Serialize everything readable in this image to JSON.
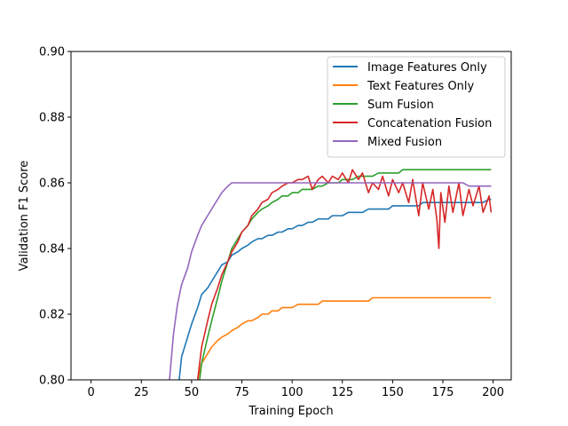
{
  "chart_data": {
    "type": "line",
    "title": "",
    "xlabel": "Training Epoch",
    "ylabel": "Validation F1 Score",
    "xlim": [
      -10,
      209
    ],
    "ylim": [
      0.8,
      0.9
    ],
    "xticks": [
      0,
      25,
      50,
      75,
      100,
      125,
      150,
      175,
      200
    ],
    "yticks": [
      0.8,
      0.82,
      0.84,
      0.86,
      0.88,
      0.9
    ],
    "ytick_labels": [
      "0.80",
      "0.82",
      "0.84",
      "0.86",
      "0.88",
      "0.90"
    ],
    "grid": false,
    "legend_position": "top-right",
    "series": [
      {
        "name": "Image Features Only",
        "color": "#1f77b4",
        "points": [
          [
            40,
            0.78
          ],
          [
            43,
            0.795
          ],
          [
            45,
            0.807
          ],
          [
            48,
            0.813
          ],
          [
            50,
            0.817
          ],
          [
            53,
            0.822
          ],
          [
            55,
            0.826
          ],
          [
            58,
            0.828
          ],
          [
            60,
            0.83
          ],
          [
            63,
            0.833
          ],
          [
            65,
            0.835
          ],
          [
            68,
            0.836
          ],
          [
            70,
            0.838
          ],
          [
            73,
            0.839
          ],
          [
            75,
            0.84
          ],
          [
            78,
            0.841
          ],
          [
            80,
            0.842
          ],
          [
            83,
            0.843
          ],
          [
            85,
            0.843
          ],
          [
            88,
            0.844
          ],
          [
            90,
            0.844
          ],
          [
            93,
            0.845
          ],
          [
            95,
            0.845
          ],
          [
            98,
            0.846
          ],
          [
            100,
            0.846
          ],
          [
            103,
            0.847
          ],
          [
            105,
            0.847
          ],
          [
            108,
            0.848
          ],
          [
            110,
            0.848
          ],
          [
            113,
            0.849
          ],
          [
            115,
            0.849
          ],
          [
            118,
            0.849
          ],
          [
            120,
            0.85
          ],
          [
            123,
            0.85
          ],
          [
            125,
            0.85
          ],
          [
            128,
            0.851
          ],
          [
            130,
            0.851
          ],
          [
            133,
            0.851
          ],
          [
            135,
            0.851
          ],
          [
            138,
            0.852
          ],
          [
            140,
            0.852
          ],
          [
            143,
            0.852
          ],
          [
            145,
            0.852
          ],
          [
            148,
            0.852
          ],
          [
            150,
            0.853
          ],
          [
            153,
            0.853
          ],
          [
            155,
            0.853
          ],
          [
            158,
            0.853
          ],
          [
            160,
            0.853
          ],
          [
            163,
            0.853
          ],
          [
            165,
            0.854
          ],
          [
            168,
            0.854
          ],
          [
            170,
            0.854
          ],
          [
            173,
            0.854
          ],
          [
            175,
            0.854
          ],
          [
            178,
            0.854
          ],
          [
            180,
            0.854
          ],
          [
            183,
            0.854
          ],
          [
            185,
            0.854
          ],
          [
            188,
            0.854
          ],
          [
            190,
            0.854
          ],
          [
            193,
            0.854
          ],
          [
            195,
            0.854
          ],
          [
            198,
            0.855
          ],
          [
            199,
            0.855
          ]
        ]
      },
      {
        "name": "Text Features Only",
        "color": "#ff7f0e",
        "points": [
          [
            51,
            0.79
          ],
          [
            53,
            0.8
          ],
          [
            55,
            0.805
          ],
          [
            58,
            0.808
          ],
          [
            60,
            0.81
          ],
          [
            63,
            0.812
          ],
          [
            65,
            0.813
          ],
          [
            68,
            0.814
          ],
          [
            70,
            0.815
          ],
          [
            73,
            0.816
          ],
          [
            75,
            0.817
          ],
          [
            78,
            0.818
          ],
          [
            80,
            0.818
          ],
          [
            83,
            0.819
          ],
          [
            85,
            0.82
          ],
          [
            88,
            0.82
          ],
          [
            90,
            0.821
          ],
          [
            93,
            0.821
          ],
          [
            95,
            0.822
          ],
          [
            98,
            0.822
          ],
          [
            100,
            0.822
          ],
          [
            103,
            0.823
          ],
          [
            105,
            0.823
          ],
          [
            108,
            0.823
          ],
          [
            110,
            0.823
          ],
          [
            113,
            0.823
          ],
          [
            115,
            0.824
          ],
          [
            118,
            0.824
          ],
          [
            120,
            0.824
          ],
          [
            123,
            0.824
          ],
          [
            125,
            0.824
          ],
          [
            128,
            0.824
          ],
          [
            130,
            0.824
          ],
          [
            133,
            0.824
          ],
          [
            135,
            0.824
          ],
          [
            138,
            0.824
          ],
          [
            140,
            0.825
          ],
          [
            143,
            0.825
          ],
          [
            145,
            0.825
          ],
          [
            148,
            0.825
          ],
          [
            150,
            0.825
          ],
          [
            153,
            0.825
          ],
          [
            155,
            0.825
          ],
          [
            158,
            0.825
          ],
          [
            160,
            0.825
          ],
          [
            163,
            0.825
          ],
          [
            165,
            0.825
          ],
          [
            168,
            0.825
          ],
          [
            170,
            0.825
          ],
          [
            173,
            0.825
          ],
          [
            175,
            0.825
          ],
          [
            178,
            0.825
          ],
          [
            180,
            0.825
          ],
          [
            183,
            0.825
          ],
          [
            185,
            0.825
          ],
          [
            188,
            0.825
          ],
          [
            190,
            0.825
          ],
          [
            193,
            0.825
          ],
          [
            195,
            0.825
          ],
          [
            198,
            0.825
          ],
          [
            199,
            0.825
          ]
        ]
      },
      {
        "name": "Sum Fusion",
        "color": "#2ca02c",
        "points": [
          [
            52,
            0.79
          ],
          [
            55,
            0.805
          ],
          [
            58,
            0.813
          ],
          [
            60,
            0.818
          ],
          [
            63,
            0.825
          ],
          [
            65,
            0.83
          ],
          [
            68,
            0.836
          ],
          [
            70,
            0.84
          ],
          [
            73,
            0.843
          ],
          [
            75,
            0.845
          ],
          [
            78,
            0.847
          ],
          [
            80,
            0.849
          ],
          [
            83,
            0.851
          ],
          [
            85,
            0.852
          ],
          [
            88,
            0.853
          ],
          [
            90,
            0.854
          ],
          [
            93,
            0.855
          ],
          [
            95,
            0.856
          ],
          [
            98,
            0.856
          ],
          [
            100,
            0.857
          ],
          [
            103,
            0.857
          ],
          [
            105,
            0.858
          ],
          [
            108,
            0.858
          ],
          [
            110,
            0.858
          ],
          [
            113,
            0.859
          ],
          [
            115,
            0.859
          ],
          [
            118,
            0.86
          ],
          [
            120,
            0.86
          ],
          [
            123,
            0.86
          ],
          [
            125,
            0.861
          ],
          [
            128,
            0.861
          ],
          [
            130,
            0.861
          ],
          [
            133,
            0.862
          ],
          [
            135,
            0.862
          ],
          [
            138,
            0.862
          ],
          [
            140,
            0.862
          ],
          [
            143,
            0.863
          ],
          [
            145,
            0.863
          ],
          [
            148,
            0.863
          ],
          [
            150,
            0.863
          ],
          [
            153,
            0.863
          ],
          [
            155,
            0.864
          ],
          [
            158,
            0.864
          ],
          [
            160,
            0.864
          ],
          [
            163,
            0.864
          ],
          [
            165,
            0.864
          ],
          [
            168,
            0.864
          ],
          [
            170,
            0.864
          ],
          [
            173,
            0.864
          ],
          [
            175,
            0.864
          ],
          [
            178,
            0.864
          ],
          [
            180,
            0.864
          ],
          [
            183,
            0.864
          ],
          [
            185,
            0.864
          ],
          [
            188,
            0.864
          ],
          [
            190,
            0.864
          ],
          [
            193,
            0.864
          ],
          [
            195,
            0.864
          ],
          [
            198,
            0.864
          ],
          [
            199,
            0.864
          ]
        ]
      },
      {
        "name": "Concatenation Fusion",
        "color": "#d62728",
        "points": [
          [
            51,
            0.79
          ],
          [
            53,
            0.8
          ],
          [
            55,
            0.81
          ],
          [
            58,
            0.818
          ],
          [
            60,
            0.823
          ],
          [
            63,
            0.828
          ],
          [
            65,
            0.832
          ],
          [
            68,
            0.836
          ],
          [
            70,
            0.839
          ],
          [
            73,
            0.842
          ],
          [
            75,
            0.845
          ],
          [
            78,
            0.847
          ],
          [
            80,
            0.85
          ],
          [
            83,
            0.852
          ],
          [
            85,
            0.854
          ],
          [
            88,
            0.855
          ],
          [
            90,
            0.857
          ],
          [
            93,
            0.858
          ],
          [
            95,
            0.859
          ],
          [
            98,
            0.86
          ],
          [
            100,
            0.86
          ],
          [
            103,
            0.861
          ],
          [
            105,
            0.861
          ],
          [
            108,
            0.862
          ],
          [
            110,
            0.858
          ],
          [
            113,
            0.861
          ],
          [
            115,
            0.862
          ],
          [
            118,
            0.86
          ],
          [
            120,
            0.862
          ],
          [
            123,
            0.861
          ],
          [
            125,
            0.863
          ],
          [
            128,
            0.86
          ],
          [
            130,
            0.864
          ],
          [
            133,
            0.861
          ],
          [
            135,
            0.863
          ],
          [
            138,
            0.857
          ],
          [
            140,
            0.86
          ],
          [
            143,
            0.858
          ],
          [
            145,
            0.862
          ],
          [
            148,
            0.856
          ],
          [
            150,
            0.861
          ],
          [
            153,
            0.857
          ],
          [
            155,
            0.86
          ],
          [
            158,
            0.854
          ],
          [
            160,
            0.861
          ],
          [
            163,
            0.85
          ],
          [
            165,
            0.86
          ],
          [
            168,
            0.852
          ],
          [
            170,
            0.858
          ],
          [
            172,
            0.849
          ],
          [
            173,
            0.84
          ],
          [
            174,
            0.857
          ],
          [
            176,
            0.848
          ],
          [
            178,
            0.859
          ],
          [
            180,
            0.851
          ],
          [
            183,
            0.86
          ],
          [
            185,
            0.85
          ],
          [
            188,
            0.858
          ],
          [
            190,
            0.853
          ],
          [
            193,
            0.859
          ],
          [
            195,
            0.851
          ],
          [
            198,
            0.856
          ],
          [
            199,
            0.851
          ]
        ]
      },
      {
        "name": "Mixed Fusion",
        "color": "#9467bd",
        "points": [
          [
            39,
            0.8
          ],
          [
            41,
            0.814
          ],
          [
            43,
            0.823
          ],
          [
            45,
            0.829
          ],
          [
            48,
            0.834
          ],
          [
            50,
            0.839
          ],
          [
            53,
            0.844
          ],
          [
            55,
            0.847
          ],
          [
            58,
            0.85
          ],
          [
            60,
            0.852
          ],
          [
            63,
            0.855
          ],
          [
            65,
            0.857
          ],
          [
            68,
            0.859
          ],
          [
            70,
            0.86
          ],
          [
            73,
            0.86
          ],
          [
            75,
            0.86
          ],
          [
            78,
            0.86
          ],
          [
            80,
            0.86
          ],
          [
            83,
            0.86
          ],
          [
            85,
            0.86
          ],
          [
            88,
            0.86
          ],
          [
            90,
            0.86
          ],
          [
            93,
            0.86
          ],
          [
            95,
            0.86
          ],
          [
            98,
            0.86
          ],
          [
            100,
            0.86
          ],
          [
            103,
            0.86
          ],
          [
            105,
            0.86
          ],
          [
            108,
            0.86
          ],
          [
            110,
            0.86
          ],
          [
            113,
            0.86
          ],
          [
            115,
            0.86
          ],
          [
            118,
            0.86
          ],
          [
            120,
            0.86
          ],
          [
            123,
            0.86
          ],
          [
            125,
            0.86
          ],
          [
            128,
            0.86
          ],
          [
            130,
            0.86
          ],
          [
            133,
            0.86
          ],
          [
            135,
            0.86
          ],
          [
            138,
            0.86
          ],
          [
            140,
            0.86
          ],
          [
            143,
            0.86
          ],
          [
            145,
            0.86
          ],
          [
            148,
            0.86
          ],
          [
            150,
            0.86
          ],
          [
            153,
            0.86
          ],
          [
            155,
            0.86
          ],
          [
            158,
            0.86
          ],
          [
            160,
            0.86
          ],
          [
            163,
            0.86
          ],
          [
            165,
            0.86
          ],
          [
            168,
            0.86
          ],
          [
            170,
            0.86
          ],
          [
            173,
            0.86
          ],
          [
            175,
            0.86
          ],
          [
            178,
            0.86
          ],
          [
            180,
            0.86
          ],
          [
            183,
            0.86
          ],
          [
            185,
            0.86
          ],
          [
            188,
            0.859
          ],
          [
            190,
            0.859
          ],
          [
            193,
            0.859
          ],
          [
            195,
            0.859
          ],
          [
            198,
            0.859
          ],
          [
            199,
            0.859
          ]
        ]
      }
    ]
  }
}
